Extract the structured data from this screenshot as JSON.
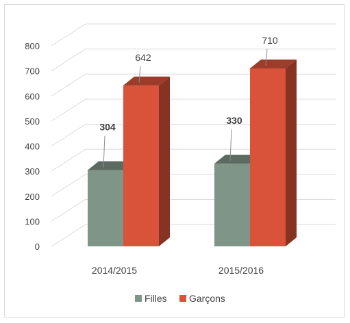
{
  "chart_data": {
    "type": "bar",
    "style": "3d-clustered-column",
    "categories": [
      "2014/2015",
      "2015/2016"
    ],
    "series": [
      {
        "name": "Filles",
        "values": [
          304,
          330
        ],
        "color": "#7f9587",
        "label_bold": true
      },
      {
        "name": "Garçons",
        "values": [
          642,
          710
        ],
        "color": "#d9533a",
        "label_bold": false
      }
    ],
    "ylim": [
      0,
      800
    ],
    "yticks": [
      0,
      100,
      200,
      300,
      400,
      500,
      600,
      700,
      800
    ],
    "ytick_labels": [
      "0",
      "100",
      "200",
      "300",
      "400",
      "500",
      "600",
      "700",
      "800"
    ],
    "data_labels": [
      [
        "304",
        "330"
      ],
      [
        "642",
        "710"
      ]
    ],
    "grid": true,
    "legend_position": "bottom"
  }
}
